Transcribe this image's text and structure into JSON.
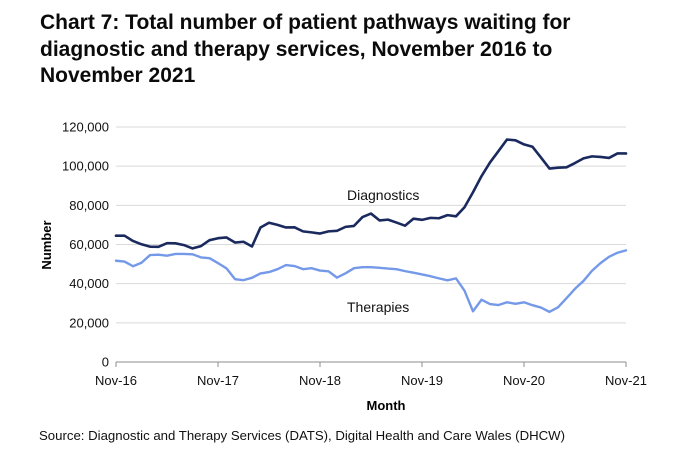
{
  "title": "Chart 7: Total number of patient pathways waiting for diagnostic and therapy services, November 2016 to November 2021",
  "source": "Source: Diagnostic and Therapy Services (DATS), Digital Health and Care Wales (DHCW)",
  "colors": {
    "diagnostics": "#1b2a5e",
    "therapies": "#7499e8",
    "axis": "#8c8c8c",
    "grid": "#d9d9d9"
  },
  "chart_data": {
    "type": "line",
    "title": "Chart 7: Total number of patient pathways waiting for diagnostic and therapy services, November 2016 to November 2021",
    "xlabel": "Month",
    "ylabel": "Number",
    "ylim": [
      0,
      120000
    ],
    "grid": true,
    "x_tick_labels": [
      "Nov-16",
      "Nov-17",
      "Nov-18",
      "Nov-19",
      "Nov-20",
      "Nov-21"
    ],
    "y_tick_labels": [
      "0",
      "20,000",
      "40,000",
      "60,000",
      "80,000",
      "100,000",
      "120,000"
    ],
    "y_ticks": [
      0,
      20000,
      40000,
      60000,
      80000,
      100000,
      120000
    ],
    "x": [
      "Nov-16",
      "Dec-16",
      "Jan-17",
      "Feb-17",
      "Mar-17",
      "Apr-17",
      "May-17",
      "Jun-17",
      "Jul-17",
      "Aug-17",
      "Sep-17",
      "Oct-17",
      "Nov-17",
      "Dec-17",
      "Jan-18",
      "Feb-18",
      "Mar-18",
      "Apr-18",
      "May-18",
      "Jun-18",
      "Jul-18",
      "Aug-18",
      "Sep-18",
      "Oct-18",
      "Nov-18",
      "Dec-18",
      "Jan-19",
      "Feb-19",
      "Mar-19",
      "Apr-19",
      "May-19",
      "Jun-19",
      "Jul-19",
      "Aug-19",
      "Sep-19",
      "Oct-19",
      "Nov-19",
      "Dec-19",
      "Jan-20",
      "Feb-20",
      "Mar-20",
      "Apr-20",
      "May-20",
      "Jun-20",
      "Jul-20",
      "Aug-20",
      "Sep-20",
      "Oct-20",
      "Nov-20",
      "Dec-20",
      "Jan-21",
      "Feb-21",
      "Mar-21",
      "Apr-21",
      "May-21",
      "Jun-21",
      "Jul-21",
      "Aug-21",
      "Sep-21",
      "Oct-21",
      "Nov-21"
    ],
    "series": [
      {
        "name": "Diagnostics",
        "values": [
          64500,
          64500,
          61800,
          60100,
          58900,
          58800,
          60700,
          60600,
          59700,
          58000,
          59200,
          62200,
          63200,
          63600,
          61000,
          61400,
          59000,
          68700,
          71100,
          70000,
          68700,
          68800,
          66700,
          66200,
          65600,
          66700,
          67000,
          69000,
          69500,
          74000,
          75800,
          72300,
          72700,
          71200,
          69600,
          73200,
          72600,
          73600,
          73400,
          75000,
          74400,
          79000,
          86700,
          94900,
          101900,
          107700,
          113600,
          113200,
          111100,
          109900,
          104400,
          98800,
          99200,
          99400,
          101600,
          104000,
          105000,
          104700,
          104200,
          106500,
          106500
        ]
      },
      {
        "name": "Therapies",
        "values": [
          51700,
          51300,
          48900,
          50700,
          54600,
          54800,
          54300,
          55200,
          55200,
          55000,
          53400,
          53000,
          50500,
          47800,
          42300,
          41800,
          43000,
          45200,
          45900,
          47400,
          49500,
          49000,
          47400,
          47900,
          46700,
          46300,
          43100,
          45300,
          47900,
          48400,
          48400,
          48100,
          47700,
          47400,
          46400,
          45600,
          44700,
          43800,
          42700,
          41700,
          42700,
          36400,
          25900,
          31800,
          29600,
          29100,
          30500,
          29700,
          30500,
          29000,
          27800,
          25600,
          27900,
          32600,
          37400,
          41400,
          46600,
          50500,
          53700,
          55800,
          57000
        ]
      }
    ],
    "annotations": [
      "Diagnostics",
      "Therapies"
    ]
  }
}
